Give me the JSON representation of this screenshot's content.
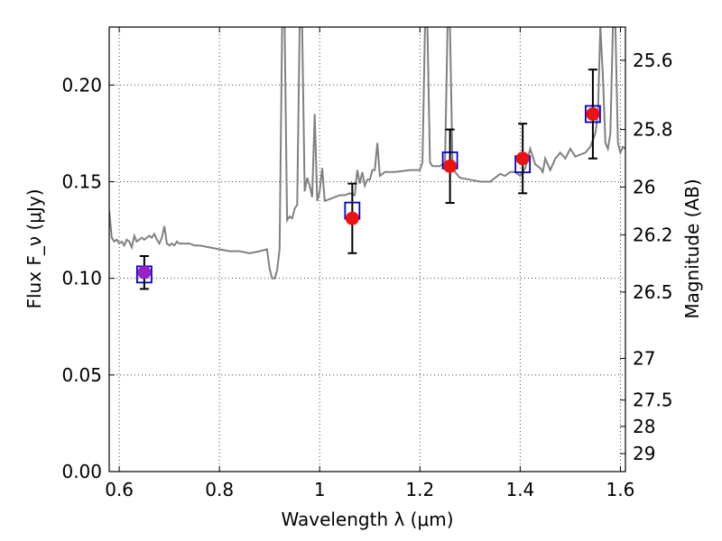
{
  "chart_data": {
    "type": "line",
    "xlabel": "Wavelength λ (μm)",
    "ylabel": "Flux F_ν (μJy)",
    "ylabel_right": "Magnitude (AB)",
    "xlim": [
      0.58,
      1.61
    ],
    "ylim": [
      0.0,
      0.23
    ],
    "grid": true,
    "x_ticks": [
      0.6,
      0.8,
      1.0,
      1.2,
      1.4,
      1.6
    ],
    "x_tick_labels": [
      "0.6",
      "0.8",
      "1",
      "1.2",
      "1.4",
      "1.6"
    ],
    "y_ticks": [
      0.0,
      0.05,
      0.1,
      0.15,
      0.2
    ],
    "y_tick_labels": [
      "0.00",
      "0.05",
      "0.10",
      "0.15",
      "0.20"
    ],
    "right_axis": {
      "tick_labels": [
        "25.6",
        "25.8",
        "26",
        "26.2",
        "26.5",
        "27",
        "27.5",
        "28",
        "29"
      ],
      "tick_flux": [
        0.2128,
        0.177,
        0.1472,
        0.1225,
        0.0929,
        0.0586,
        0.037,
        0.0234,
        0.0093
      ]
    },
    "series": [
      {
        "kind": "model-spectrum",
        "color": "#808080",
        "x": [
          0.58,
          0.585,
          0.59,
          0.595,
          0.6,
          0.605,
          0.61,
          0.615,
          0.62,
          0.625,
          0.63,
          0.635,
          0.64,
          0.645,
          0.65,
          0.655,
          0.66,
          0.665,
          0.67,
          0.675,
          0.68,
          0.685,
          0.69,
          0.695,
          0.7,
          0.705,
          0.71,
          0.715,
          0.72,
          0.73,
          0.74,
          0.75,
          0.76,
          0.78,
          0.8,
          0.82,
          0.84,
          0.86,
          0.88,
          0.895,
          0.9,
          0.905,
          0.91,
          0.915,
          0.92,
          0.925,
          0.93,
          0.935,
          0.94,
          0.945,
          0.95,
          0.955,
          0.96,
          0.965,
          0.97,
          0.975,
          0.98,
          0.985,
          0.99,
          0.995,
          1.0,
          1.005,
          1.01,
          1.02,
          1.03,
          1.04,
          1.05,
          1.06,
          1.07,
          1.075,
          1.08,
          1.085,
          1.09,
          1.095,
          1.1,
          1.105,
          1.11,
          1.115,
          1.12,
          1.13,
          1.15,
          1.18,
          1.2,
          1.205,
          1.21,
          1.215,
          1.22,
          1.225,
          1.23,
          1.24,
          1.25,
          1.255,
          1.26,
          1.265,
          1.27,
          1.28,
          1.3,
          1.32,
          1.34,
          1.35,
          1.36,
          1.37,
          1.38,
          1.39,
          1.4,
          1.41,
          1.42,
          1.43,
          1.44,
          1.445,
          1.45,
          1.46,
          1.47,
          1.48,
          1.49,
          1.5,
          1.51,
          1.52,
          1.53,
          1.54,
          1.55,
          1.555,
          1.56,
          1.565,
          1.57,
          1.575,
          1.58,
          1.585,
          1.59,
          1.595,
          1.6,
          1.605,
          1.61
        ],
        "y": [
          0.135,
          0.121,
          0.119,
          0.12,
          0.118,
          0.119,
          0.117,
          0.12,
          0.119,
          0.116,
          0.122,
          0.119,
          0.12,
          0.121,
          0.12,
          0.121,
          0.122,
          0.121,
          0.123,
          0.12,
          0.118,
          0.121,
          0.127,
          0.118,
          0.117,
          0.118,
          0.117,
          0.119,
          0.118,
          0.118,
          0.118,
          0.117,
          0.117,
          0.116,
          0.115,
          0.114,
          0.114,
          0.113,
          0.114,
          0.115,
          0.105,
          0.1,
          0.1,
          0.104,
          0.115,
          0.23,
          0.23,
          0.13,
          0.132,
          0.131,
          0.136,
          0.138,
          0.23,
          0.23,
          0.145,
          0.152,
          0.148,
          0.142,
          0.185,
          0.14,
          0.145,
          0.157,
          0.14,
          0.141,
          0.142,
          0.143,
          0.143,
          0.144,
          0.143,
          0.156,
          0.149,
          0.155,
          0.148,
          0.151,
          0.151,
          0.156,
          0.156,
          0.17,
          0.153,
          0.155,
          0.155,
          0.156,
          0.156,
          0.16,
          0.23,
          0.23,
          0.16,
          0.158,
          0.158,
          0.158,
          0.16,
          0.23,
          0.23,
          0.158,
          0.155,
          0.152,
          0.151,
          0.15,
          0.15,
          0.152,
          0.154,
          0.153,
          0.155,
          0.155,
          0.153,
          0.157,
          0.167,
          0.159,
          0.157,
          0.155,
          0.162,
          0.156,
          0.162,
          0.165,
          0.162,
          0.167,
          0.163,
          0.164,
          0.165,
          0.168,
          0.175,
          0.185,
          0.23,
          0.205,
          0.17,
          0.167,
          0.175,
          0.23,
          0.23,
          0.17,
          0.165,
          0.168,
          0.167
        ],
        "label": ""
      },
      {
        "kind": "model-photometry",
        "marker": "square",
        "color": "#0000cc",
        "x": [
          0.65,
          1.065,
          1.26,
          1.405,
          1.545
        ],
        "y": [
          0.102,
          0.135,
          0.161,
          0.159,
          0.185
        ]
      },
      {
        "kind": "observed-photometry",
        "marker": "circle",
        "color": "#ee1111",
        "x": [
          0.65,
          1.065,
          1.26,
          1.405,
          1.545
        ],
        "y": [
          0.103,
          0.131,
          0.158,
          0.162,
          0.185
        ],
        "yerr": [
          0.0085,
          0.018,
          0.019,
          0.018,
          0.023
        ],
        "point_colors": [
          "#9a20c8",
          "#ee1111",
          "#ee1111",
          "#ee1111",
          "#ee1111"
        ]
      }
    ]
  }
}
